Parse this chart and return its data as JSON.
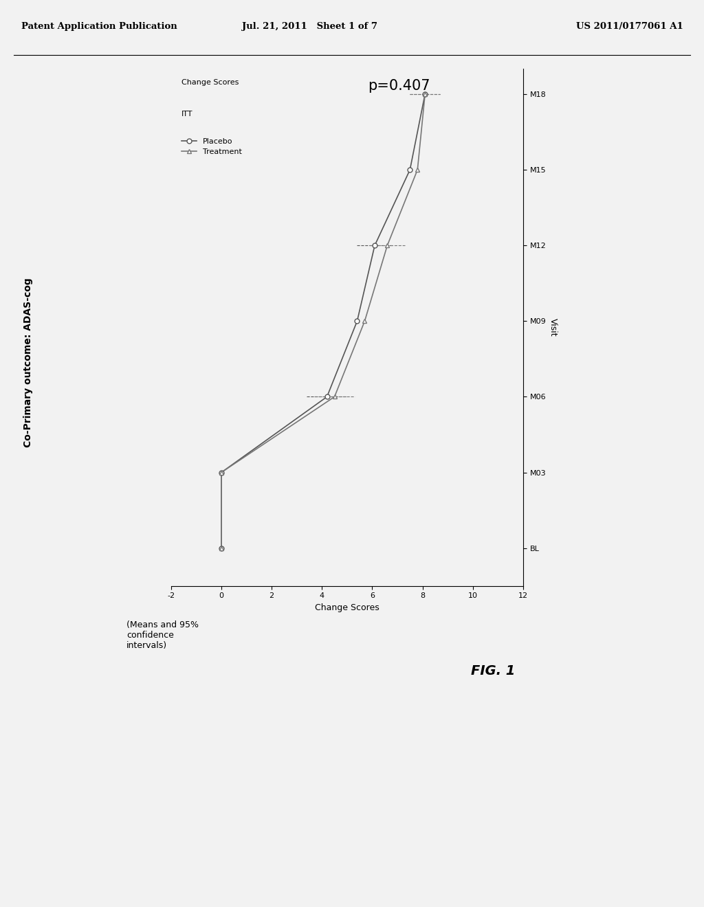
{
  "header_left": "Patent Application Publication",
  "header_center": "Jul. 21, 2011   Sheet 1 of 7",
  "header_right": "US 2011/0177061 A1",
  "title_left": "Co-Primary outcome: ADAS-cog",
  "figure_label": "FIG. 1",
  "p_value": "p=0.407",
  "legend_title1": "Change Scores",
  "legend_title2": "ITT",
  "legend_placebo": "Placebo",
  "legend_treatment": "Treatment",
  "bottom_note": "(Means and 95%\nconfidence\nintervals)",
  "x_label": "Visit",
  "y_label": "Change Scores",
  "x_ticks": [
    "BL",
    "M03",
    "M06",
    "M09",
    "M12",
    "M15",
    "M18"
  ],
  "y_lim": [
    -2,
    12
  ],
  "y_ticks": [
    -2,
    0,
    2,
    4,
    6,
    8,
    10,
    12
  ],
  "visit_vals": [
    0,
    3,
    6,
    9,
    12,
    15,
    18
  ],
  "placebo_y": [
    0.0,
    0.0,
    4.2,
    5.4,
    6.1,
    7.5,
    8.1
  ],
  "placebo_ci_lo": [
    0.0,
    0.0,
    3.4,
    4.8,
    5.4,
    6.9,
    7.5
  ],
  "placebo_ci_hi": [
    0.0,
    0.0,
    5.0,
    6.0,
    6.8,
    8.1,
    8.7
  ],
  "treatment_y": [
    0.0,
    0.0,
    4.5,
    5.7,
    6.6,
    7.8,
    8.1
  ],
  "treatment_ci_lo": [
    0.0,
    0.0,
    3.7,
    5.1,
    5.9,
    7.2,
    7.5
  ],
  "treatment_ci_hi": [
    0.0,
    0.0,
    5.3,
    6.3,
    7.3,
    8.4,
    8.7
  ],
  "ci_visits_indices": [
    2,
    4,
    6
  ],
  "bg_color": "#f2f2f2",
  "line_color": "#555555",
  "line_color2": "#777777"
}
